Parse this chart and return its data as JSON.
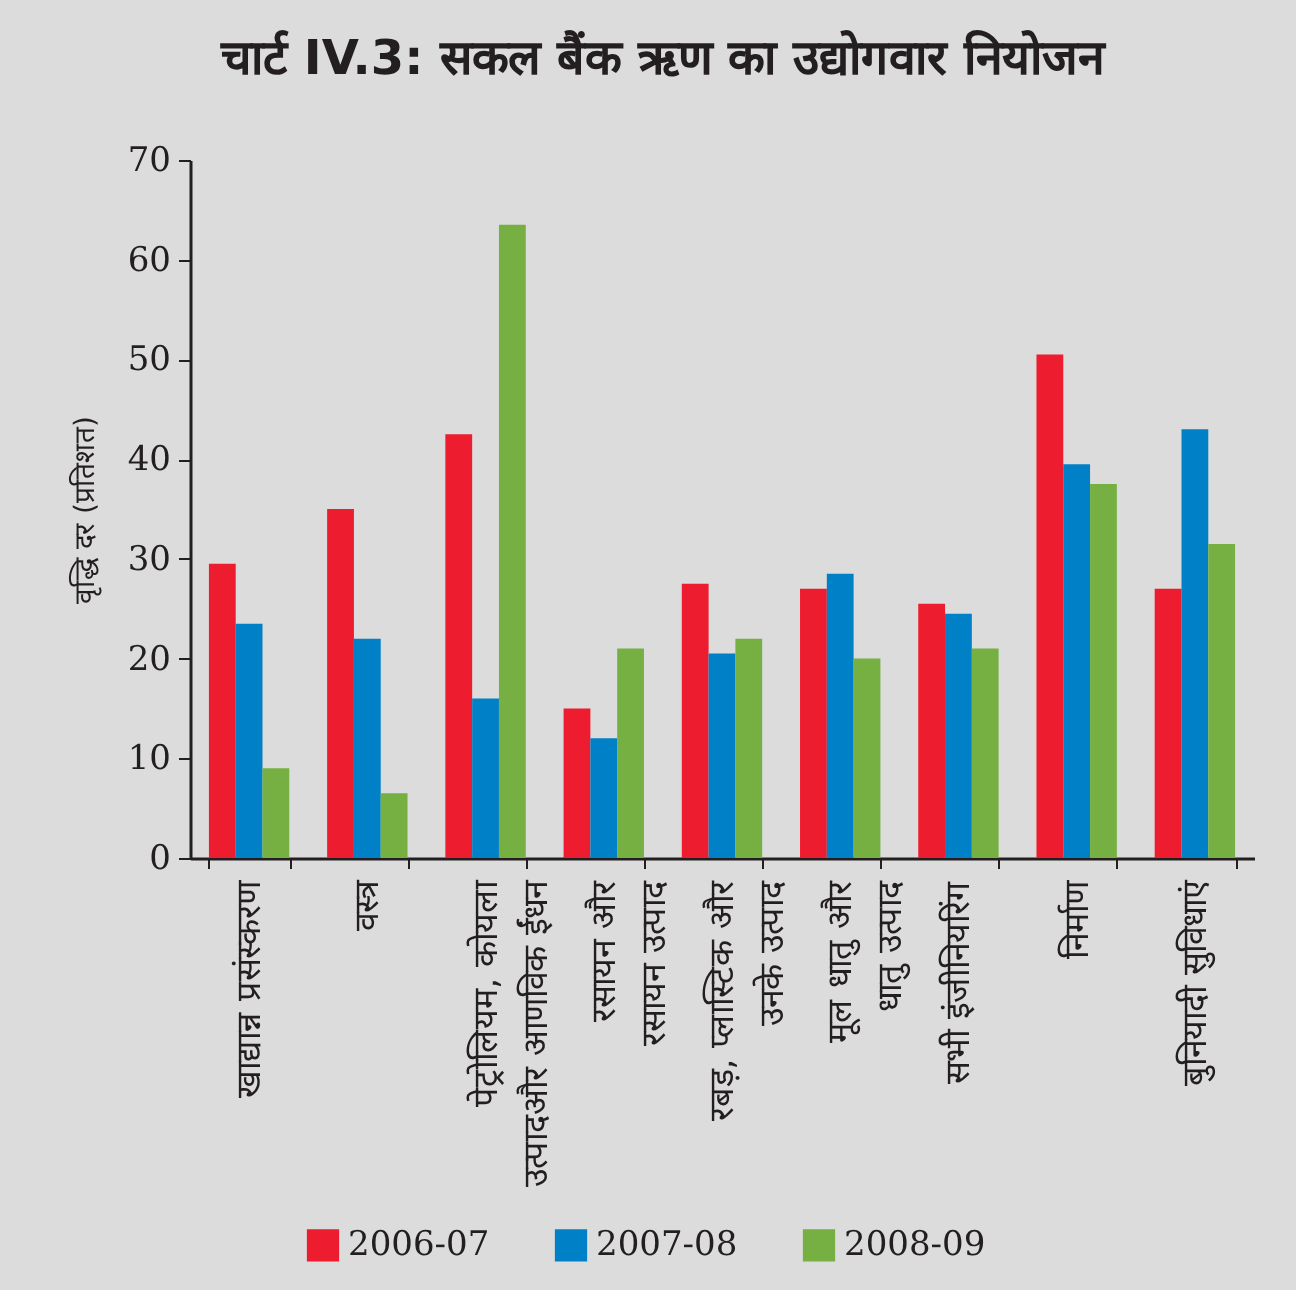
{
  "chart_data": {
    "type": "bar",
    "title": "चार्ट IV.3: सकल बैंक ऋण का उद्योगवार नियोजन",
    "ylabel": "वृद्धि दर (प्रतिशत)",
    "categories": [
      "खाद्यान्न प्रसंस्करण",
      "वस्त्र",
      "पेट्रोलियम, कोयला\nउत्पादऔर आणविक ईंधन",
      "रसायन और\nरसायन उत्पाद",
      "रबड़, प्लास्टिक और\nउनके उत्पाद",
      "मूल धातु और\nधातु उत्पाद",
      "सभी इंजीनियरिंग",
      "निर्माण",
      "बुनियादी सुविधाएं"
    ],
    "series": [
      {
        "name": "2006-07",
        "color": "#ed1c2e",
        "values": [
          29.5,
          35,
          42.5,
          15,
          27.5,
          27,
          25.5,
          50.5,
          27
        ]
      },
      {
        "name": "2007-08",
        "color": "#0080c6",
        "values": [
          23.5,
          22,
          16,
          12,
          20.5,
          28.5,
          24.5,
          39.5,
          43
        ]
      },
      {
        "name": "2008-09",
        "color": "#76b043",
        "values": [
          9,
          6.5,
          63.5,
          21,
          22,
          20,
          21,
          37.5,
          31.5
        ]
      }
    ],
    "ylim": [
      0,
      70
    ],
    "yticks": [
      0,
      10,
      20,
      30,
      40,
      50,
      60,
      70
    ],
    "legend": "bottom"
  }
}
